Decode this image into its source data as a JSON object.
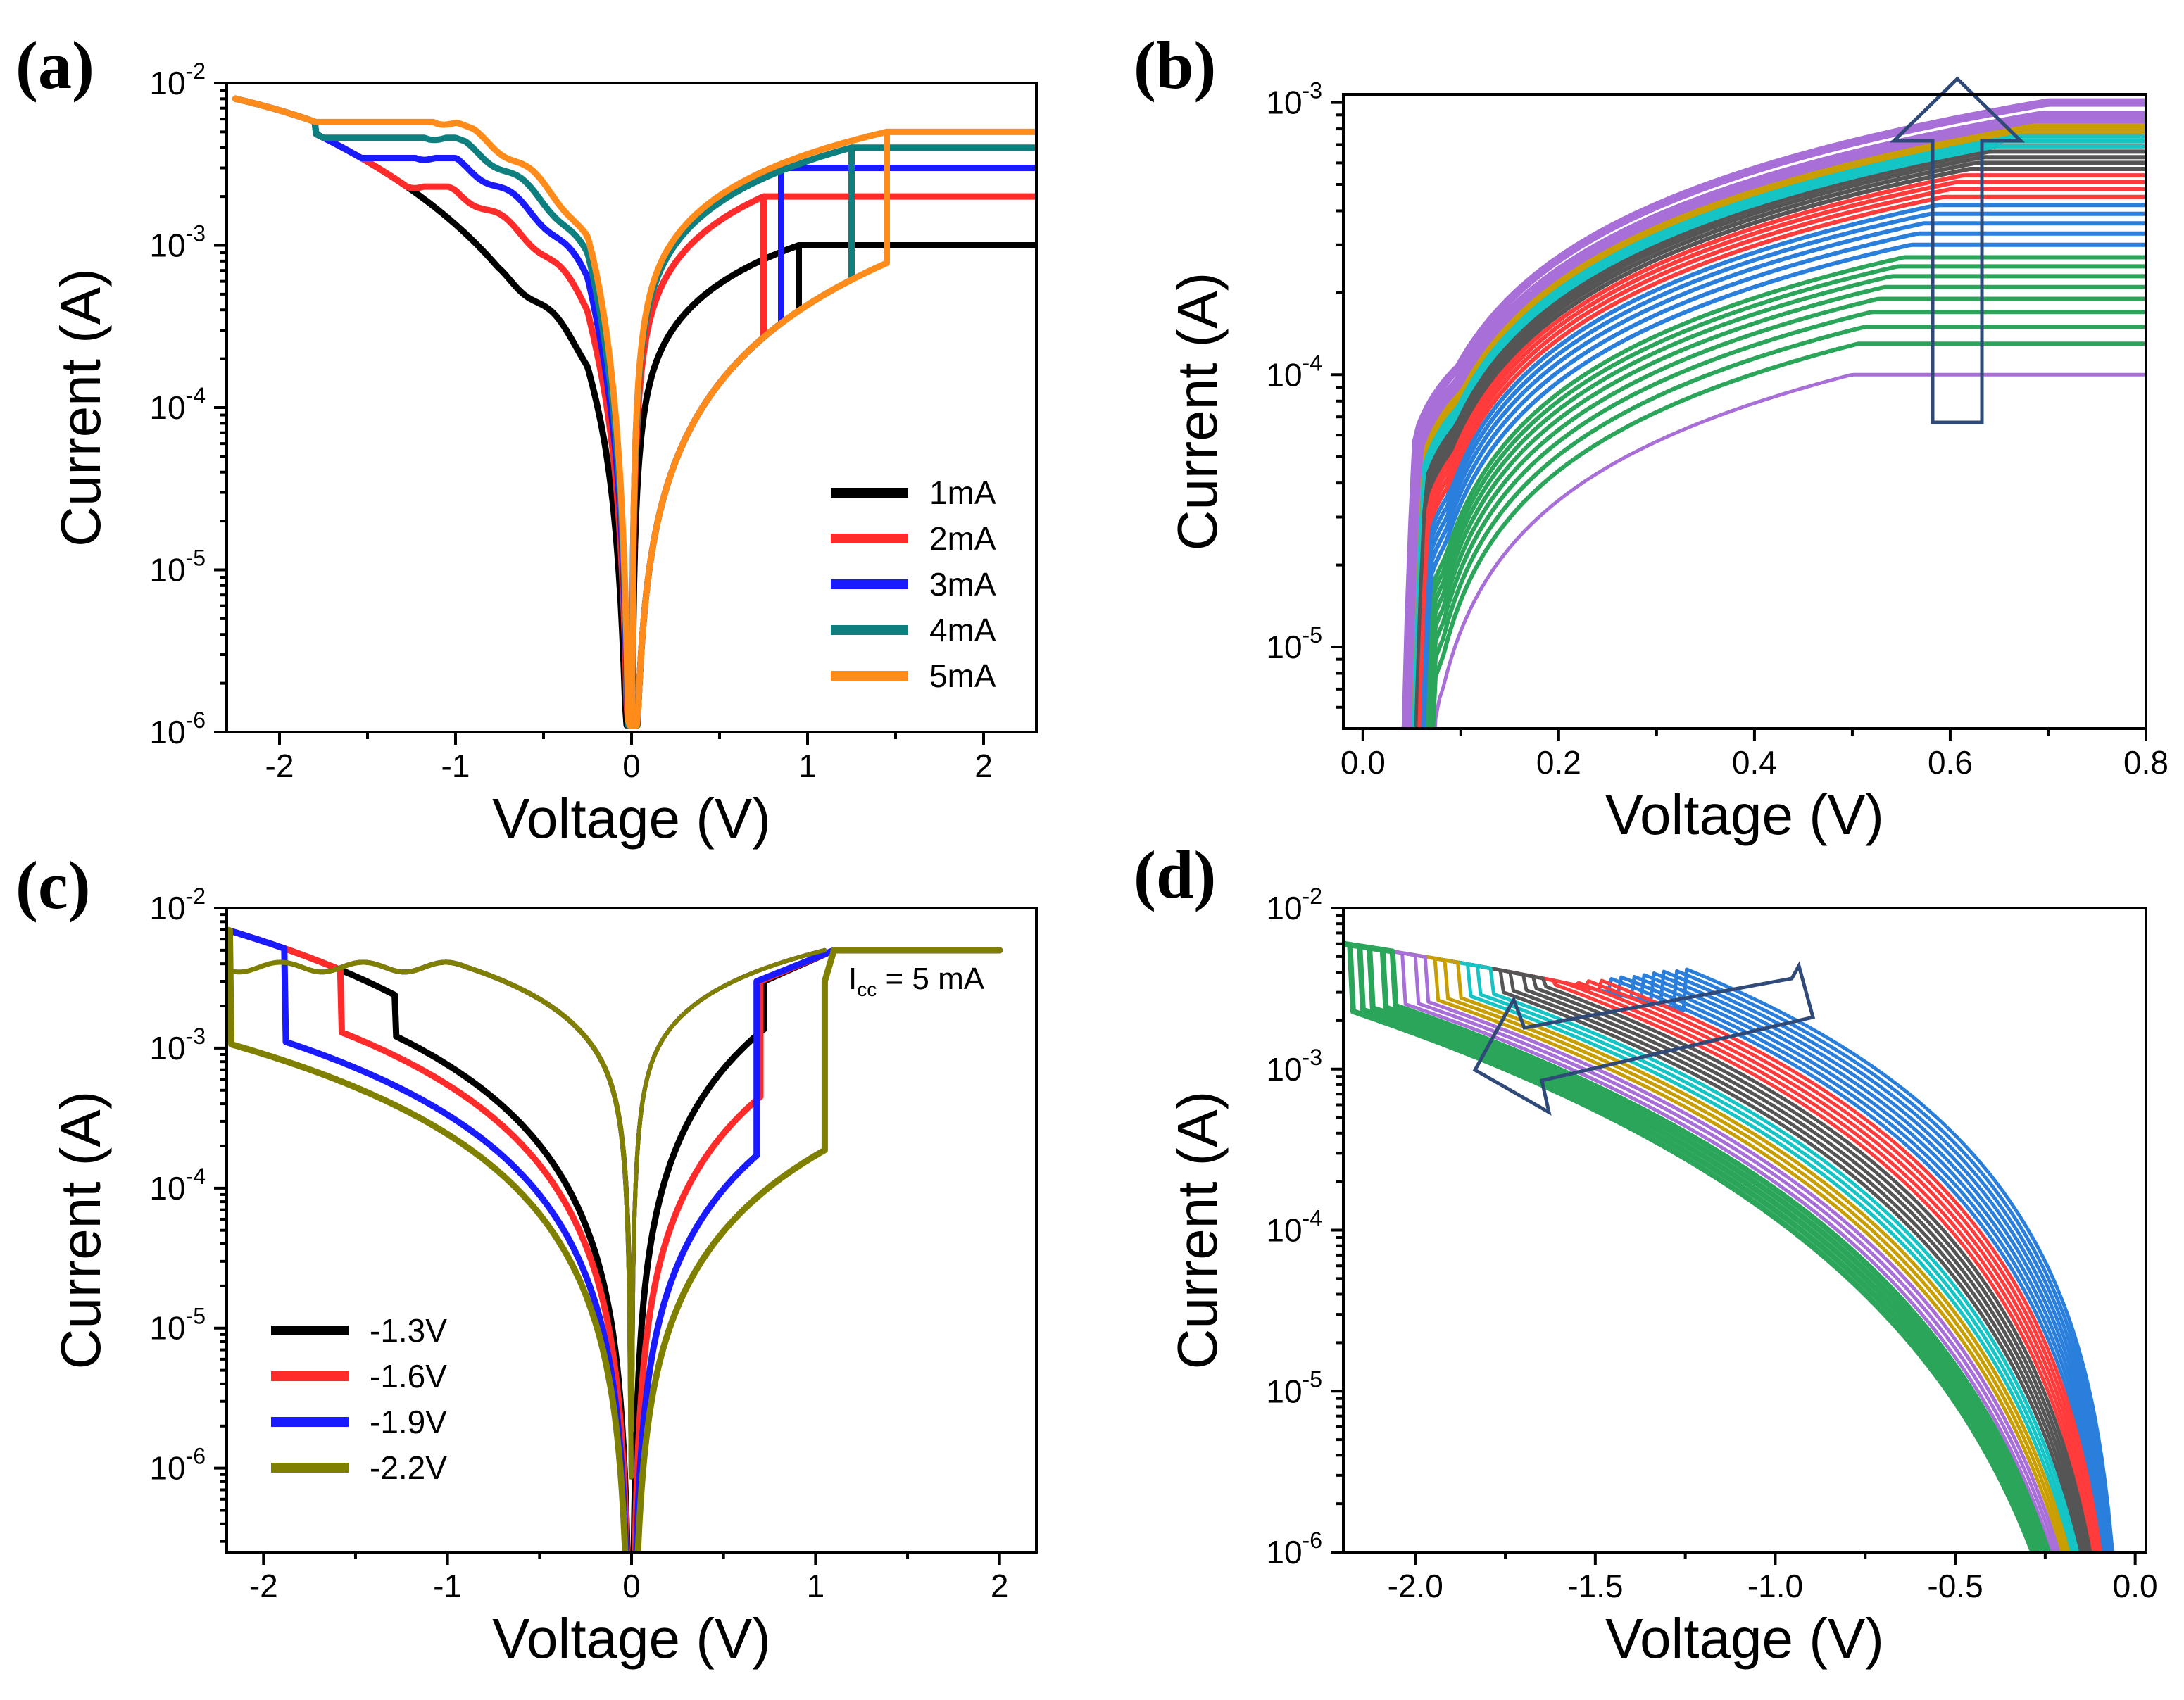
{
  "chart_data": [
    {
      "panel": "(a)",
      "type": "line",
      "xlabel": "Voltage (V)",
      "ylabel": "Current (A)",
      "xlim": [
        -2.3,
        2.3
      ],
      "ylim_log10": [
        -6,
        -2
      ],
      "xticks": [
        -2,
        -1,
        0,
        1,
        2
      ],
      "xtick_labels": [
        "-2",
        "-1",
        "0",
        "1",
        "2"
      ],
      "yticks_exp": [
        -6,
        -5,
        -4,
        -3,
        -2
      ],
      "ytick_base": "10",
      "ytick_labels": [
        "-6",
        "-5",
        "-4",
        "-3",
        "-2"
      ],
      "legend_position": "bottom-right",
      "series": [
        {
          "name": "1mA",
          "color": "#000000",
          "compliance": 0.001,
          "set_v": 0.95
        },
        {
          "name": "2mA",
          "color": "#ff2a2a",
          "compliance": 0.002,
          "set_v": 0.75
        },
        {
          "name": "3mA",
          "color": "#1a1aff",
          "compliance": 0.003,
          "set_v": 0.85
        },
        {
          "name": "4mA",
          "color": "#0e7f7f",
          "compliance": 0.004,
          "set_v": 1.25
        },
        {
          "name": "5mA",
          "color": "#ff8c1a",
          "compliance": 0.005,
          "set_v": 1.45
        }
      ]
    },
    {
      "panel": "(b)",
      "type": "line",
      "xlabel": "Voltage (V)",
      "ylabel": "Current (A)",
      "xlim": [
        -0.02,
        0.8
      ],
      "ylim_log10": [
        -5.3,
        -2.97
      ],
      "xticks": [
        0.0,
        0.2,
        0.4,
        0.6,
        0.8
      ],
      "xtick_labels": [
        "0.0",
        "0.2",
        "0.4",
        "0.6",
        "0.8"
      ],
      "yticks_exp": [
        -5,
        -4,
        -3
      ],
      "ytick_base": "10",
      "ytick_labels": [
        "-5",
        "-4",
        "-3"
      ],
      "annotation": "up arrow: increasing compliance current",
      "curve_levels_mA": [
        0.1,
        0.13,
        0.15,
        0.17,
        0.19,
        0.21,
        0.23,
        0.25,
        0.27,
        0.3,
        0.33,
        0.36,
        0.39,
        0.42,
        0.45,
        0.48,
        0.51,
        0.54,
        0.57,
        0.6,
        0.63,
        0.66,
        0.69,
        0.72,
        0.75,
        0.78,
        0.81,
        0.84,
        0.87,
        0.9,
        1.0
      ],
      "color_groups": [
        {
          "color": "#a86fd8",
          "count": 1
        },
        {
          "color": "#2aa55a",
          "count": 8
        },
        {
          "color": "#2a7fdc",
          "count": 5
        },
        {
          "color": "#ff3b3b",
          "count": 4
        },
        {
          "color": "#555555",
          "count": 4
        },
        {
          "color": "#15c4c4",
          "count": 3
        },
        {
          "color": "#c89e00",
          "count": 3
        },
        {
          "color": "#a86fd8",
          "count": 3
        }
      ]
    },
    {
      "panel": "(c)",
      "type": "line",
      "xlabel": "Voltage (V)",
      "ylabel": "Current (A)",
      "xlim": [
        -2.2,
        2.2
      ],
      "ylim_log10": [
        -6.6,
        -2
      ],
      "xticks": [
        -2,
        -1,
        0,
        1,
        2
      ],
      "xtick_labels": [
        "-2",
        "-1",
        "0",
        "1",
        "2"
      ],
      "yticks_exp": [
        -6,
        -5,
        -4,
        -3,
        -2
      ],
      "ytick_base": "10",
      "ytick_labels": [
        "-6",
        "-5",
        "-4",
        "-3",
        "-2"
      ],
      "annotation_prefix": "I",
      "annotation_subscript": "cc",
      "annotation_suffix": " = 5 mA",
      "legend_position": "bottom-left",
      "series": [
        {
          "name": "-1.3V",
          "color": "#000000",
          "stop_v": -1.3,
          "set_v": 0.72
        },
        {
          "name": "-1.6V",
          "color": "#ff2a2a",
          "stop_v": -1.6,
          "set_v": 0.7
        },
        {
          "name": "-1.9V",
          "color": "#1a1aff",
          "stop_v": -1.9,
          "set_v": 0.68
        },
        {
          "name": "-2.2V",
          "color": "#808000",
          "stop_v": -2.2,
          "set_v": 1.05
        }
      ]
    },
    {
      "panel": "(d)",
      "type": "line",
      "xlabel": "Voltage (V)",
      "ylabel": "Current (A)",
      "xlim": [
        -2.2,
        0.03
      ],
      "ylim_log10": [
        -6,
        -2
      ],
      "xticks": [
        -2.0,
        -1.5,
        -1.0,
        -0.5,
        0.0
      ],
      "xtick_labels": [
        "-2.0",
        "-1.5",
        "-1.0",
        "-0.5",
        "0.0"
      ],
      "yticks_exp": [
        -6,
        -5,
        -4,
        -3,
        -2
      ],
      "ytick_base": "10",
      "ytick_labels": [
        "-6",
        "-5",
        "-4",
        "-3",
        "-2"
      ],
      "annotation": "curved arrow: decreasing reset stop voltage",
      "stop_voltages_V": [
        -1.25,
        -1.28,
        -1.31,
        -1.34,
        -1.37,
        -1.4,
        -1.43,
        -1.46,
        -1.49,
        -1.52,
        -1.55,
        -1.58,
        -1.61,
        -1.64,
        -1.67,
        -1.7,
        -1.73,
        -1.76,
        -1.79,
        -1.82,
        -1.85,
        -1.88,
        -1.91,
        -1.94,
        -1.97,
        -2.0,
        -2.03,
        -2.06,
        -2.09,
        -2.12,
        -2.15,
        -2.18
      ],
      "color_groups": [
        {
          "color": "#2a7fdc",
          "count": 8
        },
        {
          "color": "#ff3b3b",
          "count": 5
        },
        {
          "color": "#555555",
          "count": 5
        },
        {
          "color": "#15c4c4",
          "count": 3
        },
        {
          "color": "#c89e00",
          "count": 3
        },
        {
          "color": "#a86fd8",
          "count": 3
        },
        {
          "color": "#2aa55a",
          "count": 5
        }
      ]
    }
  ]
}
